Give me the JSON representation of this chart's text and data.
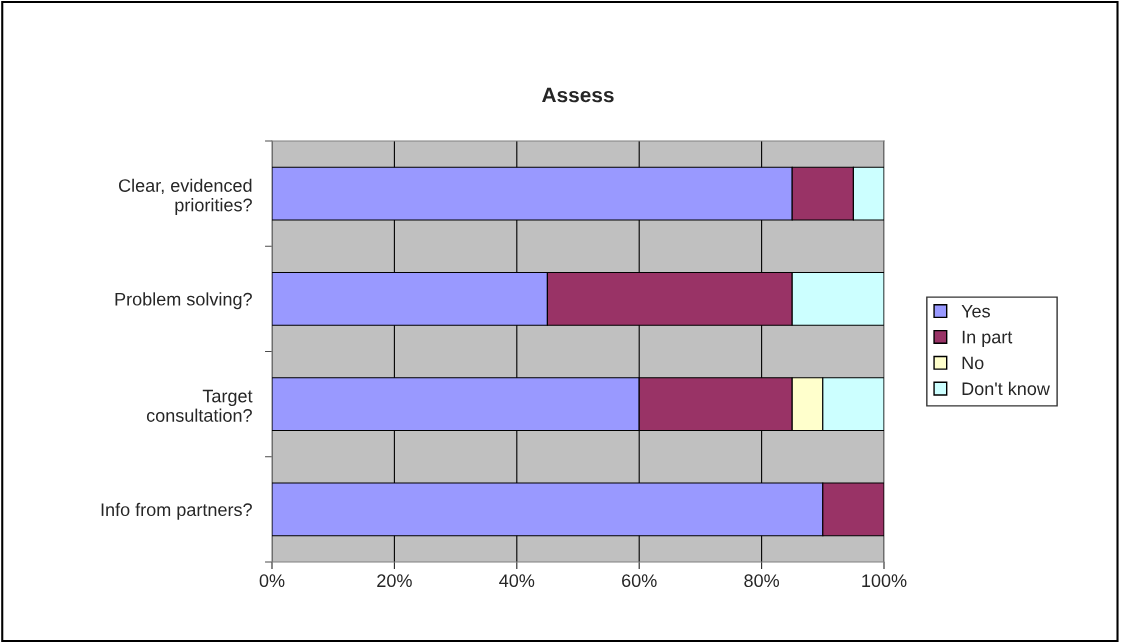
{
  "chart_data": {
    "type": "bar",
    "title": "Assess",
    "orientation": "horizontal",
    "stacked": true,
    "categories": [
      "Clear, evidenced\npriorities?",
      "Problem solving?",
      "Target\nconsultation?",
      "Info from partners?"
    ],
    "series": [
      {
        "name": "Yes",
        "color": "#9999ff",
        "values": [
          85,
          45,
          60,
          90
        ]
      },
      {
        "name": "In part",
        "color": "#993366",
        "values": [
          10,
          40,
          25,
          10
        ]
      },
      {
        "name": "No",
        "color": "#ffffcc",
        "values": [
          null,
          null,
          5,
          null
        ]
      },
      {
        "name": "Don't know",
        "color": "#ccffff",
        "values": [
          5,
          15,
          10,
          null
        ]
      }
    ],
    "xlim": [
      0,
      100
    ],
    "xticks": [
      {
        "value": 0,
        "label": "0%"
      },
      {
        "value": 20,
        "label": "20%"
      },
      {
        "value": 40,
        "label": "40%"
      },
      {
        "value": 60,
        "label": "60%"
      },
      {
        "value": 80,
        "label": "80%"
      },
      {
        "value": 100,
        "label": "100%"
      }
    ],
    "grid": "x",
    "legend": "right"
  }
}
